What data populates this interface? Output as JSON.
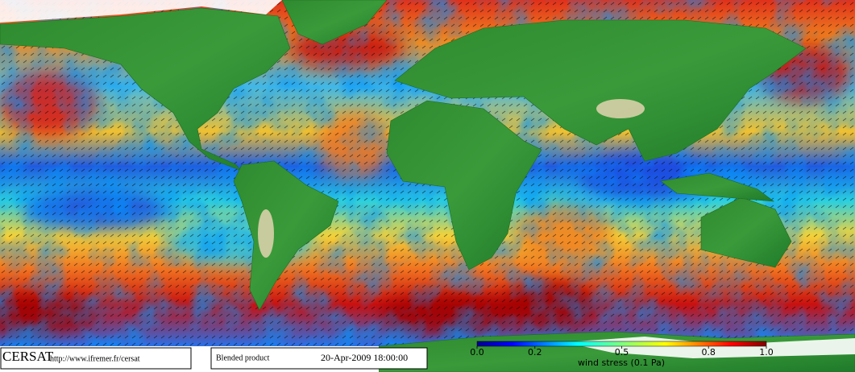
{
  "header": {
    "logo": "CERSAT",
    "url": "http://www.ifremer.fr/cersat",
    "product": "Blended product",
    "date": "20-Apr-2009 18:00:00"
  },
  "colorbar": {
    "label": "wind stress (0.1 Pa)",
    "ticks": [
      {
        "value": 0,
        "label": "0.0"
      },
      0.2,
      0.5,
      0.8,
      {
        "value": 1,
        "label": "1.0"
      }
    ]
  }
}
